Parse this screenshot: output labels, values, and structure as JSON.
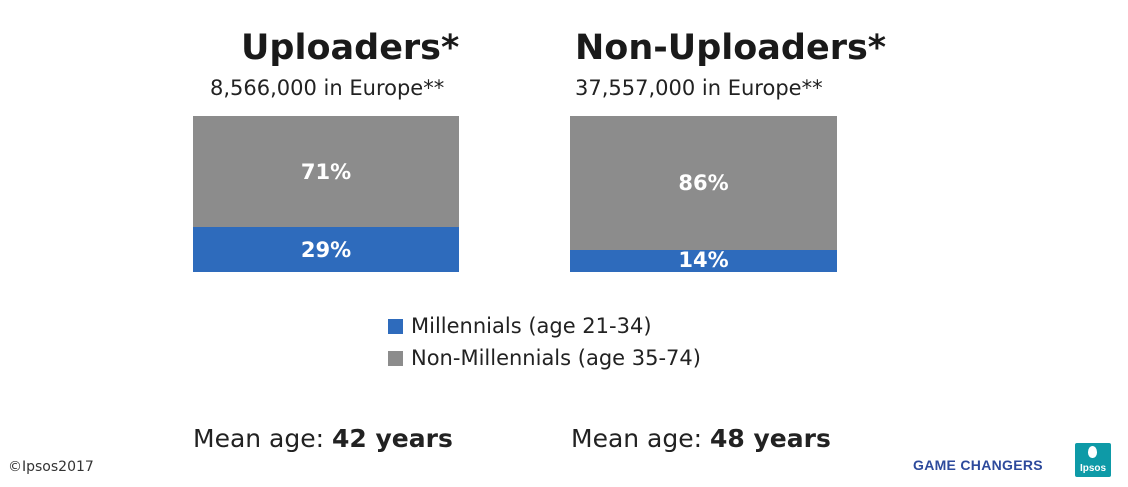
{
  "chart_data": {
    "type": "bar",
    "stacked": true,
    "unit": "%",
    "categories": [
      "Uploaders*",
      "Non-Uploaders*"
    ],
    "subtitles": [
      "8,566,000 in Europe**",
      "37,557,000 in Europe**"
    ],
    "series": [
      {
        "name": "Millennials (age 21-34)",
        "values": [
          29,
          14
        ],
        "labels": [
          "29%",
          "14%"
        ],
        "color": "#2e6bbc"
      },
      {
        "name": "Non-Millennials (age 35-74)",
        "values": [
          71,
          86
        ],
        "labels": [
          "71%",
          "86%"
        ],
        "color": "#8c8c8c"
      }
    ],
    "ylim": [
      0,
      100
    ],
    "legend_position": "bottom-center",
    "mean_age": [
      {
        "prefix": "Mean age: ",
        "value": "42 years"
      },
      {
        "prefix": "Mean age: ",
        "value": "48 years"
      }
    ]
  },
  "footer": {
    "copyright": "©Ipsos2017",
    "brand": "GAME CHANGERS",
    "logo_text": "Ipsos",
    "logo_color": "#0e9aa7"
  }
}
